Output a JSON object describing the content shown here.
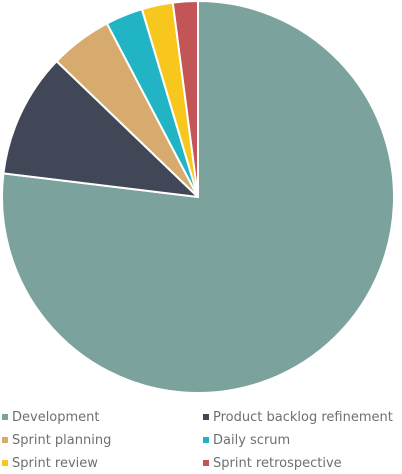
{
  "chart_data": {
    "type": "pie",
    "title": "",
    "legend_position": "bottom",
    "categories": [
      "Development",
      "Product backlog refinement",
      "Sprint planning",
      "Daily scrum",
      "Sprint review",
      "Sprint retrospective"
    ],
    "values": [
      75,
      10,
      5,
      3,
      2.5,
      2
    ],
    "colors": [
      "#7BA29C",
      "#414756",
      "#D7AB6E",
      "#21B4C4",
      "#F8C71E",
      "#C35556"
    ],
    "start_angle_deg": 0,
    "direction": "clockwise"
  }
}
